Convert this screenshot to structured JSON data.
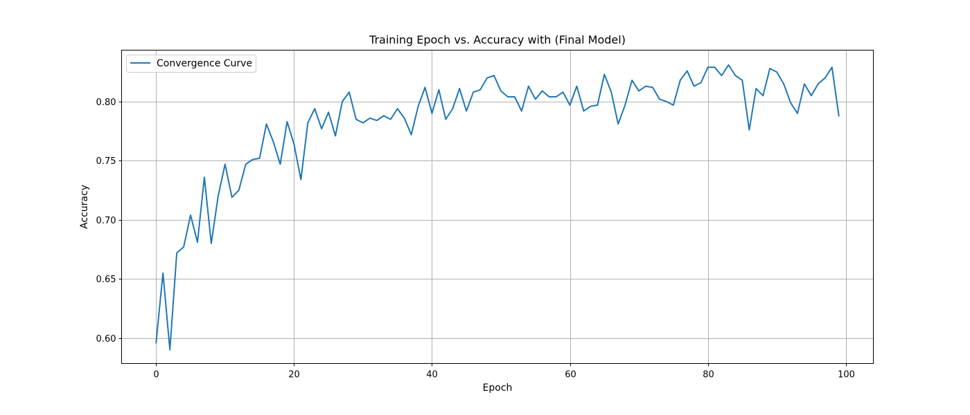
{
  "chart_data": {
    "type": "line",
    "title": "Training Epoch vs. Accuracy with (Final Model)",
    "xlabel": "Epoch",
    "ylabel": "Accuracy",
    "xlim": [
      -5,
      104
    ],
    "ylim": [
      0.5785,
      0.8435
    ],
    "xticks": [
      0,
      20,
      40,
      60,
      80,
      100
    ],
    "xtick_labels": [
      "0",
      "20",
      "40",
      "60",
      "80",
      "100"
    ],
    "yticks": [
      0.6,
      0.65,
      0.7,
      0.75,
      0.8
    ],
    "ytick_labels": [
      "0.60",
      "0.65",
      "0.70",
      "0.75",
      "0.80"
    ],
    "grid": true,
    "legend_position": "top-left",
    "series": [
      {
        "name": "Convergence Curve",
        "color": "#1f77b4",
        "x": [
          0,
          1,
          2,
          3,
          4,
          5,
          6,
          7,
          8,
          9,
          10,
          11,
          12,
          13,
          14,
          15,
          16,
          17,
          18,
          19,
          20,
          21,
          22,
          23,
          24,
          25,
          26,
          27,
          28,
          29,
          30,
          31,
          32,
          33,
          34,
          35,
          36,
          37,
          38,
          39,
          40,
          41,
          42,
          43,
          44,
          45,
          46,
          47,
          48,
          49,
          50,
          51,
          52,
          53,
          54,
          55,
          56,
          57,
          58,
          59,
          60,
          61,
          62,
          63,
          64,
          65,
          66,
          67,
          68,
          69,
          70,
          71,
          72,
          73,
          74,
          75,
          76,
          77,
          78,
          79,
          80,
          81,
          82,
          83,
          84,
          85,
          86,
          87,
          88,
          89,
          90,
          91,
          92,
          93,
          94,
          95,
          96,
          97,
          98,
          99
        ],
        "values": [
          0.596,
          0.655,
          0.59,
          0.672,
          0.677,
          0.704,
          0.681,
          0.736,
          0.68,
          0.72,
          0.747,
          0.719,
          0.725,
          0.747,
          0.751,
          0.752,
          0.781,
          0.766,
          0.747,
          0.783,
          0.764,
          0.734,
          0.782,
          0.794,
          0.777,
          0.791,
          0.771,
          0.8,
          0.808,
          0.785,
          0.782,
          0.786,
          0.784,
          0.788,
          0.785,
          0.794,
          0.786,
          0.772,
          0.796,
          0.812,
          0.79,
          0.81,
          0.785,
          0.794,
          0.811,
          0.792,
          0.808,
          0.81,
          0.82,
          0.822,
          0.809,
          0.804,
          0.804,
          0.792,
          0.813,
          0.802,
          0.809,
          0.804,
          0.804,
          0.808,
          0.797,
          0.813,
          0.792,
          0.796,
          0.797,
          0.823,
          0.808,
          0.781,
          0.797,
          0.818,
          0.809,
          0.813,
          0.812,
          0.802,
          0.8,
          0.797,
          0.818,
          0.826,
          0.813,
          0.816,
          0.829,
          0.829,
          0.822,
          0.831,
          0.822,
          0.818,
          0.776,
          0.811,
          0.805,
          0.828,
          0.825,
          0.815,
          0.799,
          0.79,
          0.815,
          0.805,
          0.815,
          0.82,
          0.829,
          0.788
        ]
      }
    ]
  }
}
